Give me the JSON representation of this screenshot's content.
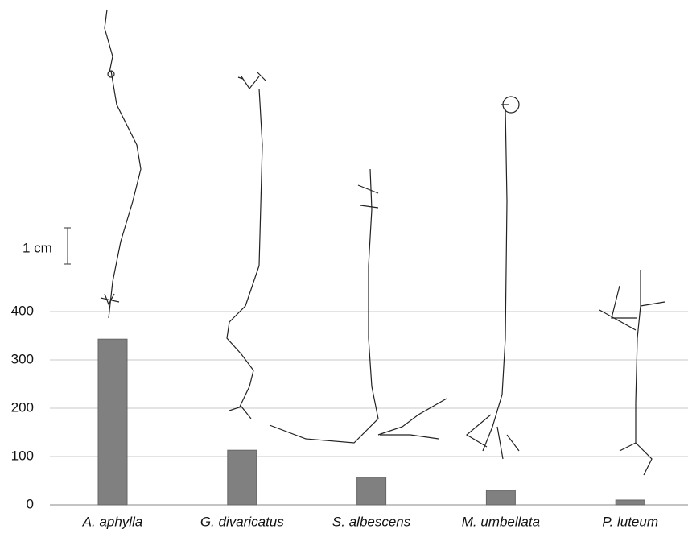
{
  "chart_data": {
    "type": "bar",
    "categories": [
      "A. aphylla",
      "G. divaricatus",
      "S. albescens",
      "M. umbellata",
      "P. luteum"
    ],
    "values": [
      343,
      113,
      57,
      30,
      10
    ],
    "color": "#808080",
    "ylim": [
      0,
      400
    ],
    "yticks": [
      0,
      100,
      200,
      300,
      400
    ],
    "grid": true,
    "scale_label": "1 cm"
  }
}
